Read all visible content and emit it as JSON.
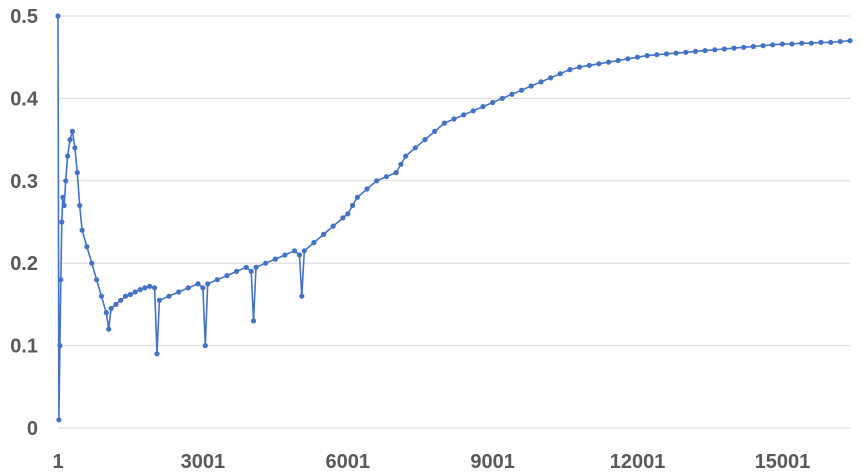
{
  "chart_data": {
    "type": "line",
    "title": "",
    "xlabel": "",
    "ylabel": "",
    "xlim": [
      1,
      16400
    ],
    "ylim": [
      0,
      0.5
    ],
    "grid": true,
    "legend": "none",
    "x_ticks": [
      {
        "value": 1,
        "label": "1"
      },
      {
        "value": 3001,
        "label": "3001"
      },
      {
        "value": 6001,
        "label": "6001"
      },
      {
        "value": 9001,
        "label": "9001"
      },
      {
        "value": 12001,
        "label": "12001"
      },
      {
        "value": 15001,
        "label": "15001"
      }
    ],
    "y_ticks": [
      {
        "value": 0,
        "label": "0"
      },
      {
        "value": 0.1,
        "label": "0.1"
      },
      {
        "value": 0.2,
        "label": "0.2"
      },
      {
        "value": 0.3,
        "label": "0.3"
      },
      {
        "value": 0.4,
        "label": "0.4"
      },
      {
        "value": 0.5,
        "label": "0.5"
      }
    ],
    "series": [
      {
        "color": "#4472c4",
        "x": [
          1,
          20,
          40,
          60,
          80,
          100,
          130,
          160,
          200,
          250,
          300,
          350,
          400,
          450,
          500,
          600,
          700,
          800,
          900,
          1001,
          1050,
          1100,
          1200,
          1300,
          1400,
          1500,
          1600,
          1700,
          1800,
          1900,
          2001,
          2050,
          2100,
          2300,
          2500,
          2700,
          2900,
          3001,
          3050,
          3100,
          3300,
          3500,
          3700,
          3900,
          4001,
          4050,
          4100,
          4300,
          4500,
          4700,
          4900,
          5001,
          5050,
          5100,
          5300,
          5500,
          5700,
          5900,
          6001,
          6100,
          6200,
          6400,
          6600,
          6800,
          7001,
          7100,
          7200,
          7400,
          7600,
          7800,
          8001,
          8200,
          8400,
          8600,
          8800,
          9001,
          9200,
          9400,
          9600,
          9800,
          10001,
          10200,
          10400,
          10600,
          10800,
          11001,
          11200,
          11400,
          11600,
          11800,
          12001,
          12200,
          12400,
          12600,
          12800,
          13001,
          13200,
          13400,
          13600,
          13800,
          14001,
          14200,
          14400,
          14600,
          14800,
          15001,
          15200,
          15400,
          15600,
          15800,
          16000,
          16200,
          16400
        ],
        "values": [
          0.5,
          0.01,
          0.1,
          0.18,
          0.25,
          0.28,
          0.27,
          0.3,
          0.33,
          0.35,
          0.36,
          0.34,
          0.31,
          0.27,
          0.24,
          0.22,
          0.2,
          0.18,
          0.16,
          0.14,
          0.12,
          0.145,
          0.15,
          0.155,
          0.16,
          0.162,
          0.165,
          0.168,
          0.17,
          0.172,
          0.17,
          0.09,
          0.155,
          0.16,
          0.165,
          0.17,
          0.175,
          0.17,
          0.1,
          0.175,
          0.18,
          0.185,
          0.19,
          0.195,
          0.19,
          0.13,
          0.195,
          0.2,
          0.205,
          0.21,
          0.215,
          0.21,
          0.16,
          0.215,
          0.225,
          0.235,
          0.245,
          0.255,
          0.26,
          0.27,
          0.28,
          0.29,
          0.3,
          0.305,
          0.31,
          0.32,
          0.33,
          0.34,
          0.35,
          0.36,
          0.37,
          0.375,
          0.38,
          0.385,
          0.39,
          0.395,
          0.4,
          0.405,
          0.41,
          0.415,
          0.42,
          0.425,
          0.43,
          0.435,
          0.438,
          0.44,
          0.442,
          0.444,
          0.446,
          0.448,
          0.45,
          0.452,
          0.453,
          0.454,
          0.455,
          0.456,
          0.457,
          0.458,
          0.459,
          0.46,
          0.461,
          0.462,
          0.463,
          0.464,
          0.465,
          0.466,
          0.466,
          0.467,
          0.467,
          0.468,
          0.468,
          0.469,
          0.47
        ]
      }
    ]
  }
}
